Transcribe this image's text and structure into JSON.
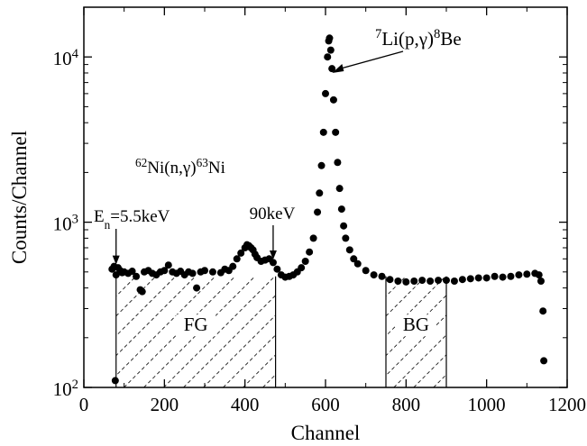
{
  "chart_data": {
    "type": "scatter",
    "title": "",
    "xlabel": "Channel",
    "ylabel": "Counts/Channel",
    "xlim": [
      0,
      1200
    ],
    "ylim": [
      100,
      20000
    ],
    "yscale": "log",
    "grid": false,
    "legend": "none",
    "x_ticks": [
      0,
      200,
      400,
      600,
      800,
      1000,
      1200
    ],
    "x_tick_labels": [
      "0",
      "200",
      "400",
      "600",
      "800",
      "1000",
      "1200"
    ],
    "y_ticks": [
      100,
      1000,
      10000
    ],
    "y_tick_labels": [
      {
        "base": "10",
        "exp": "2"
      },
      {
        "base": "10",
        "exp": "3"
      },
      {
        "base": "10",
        "exp": "4"
      }
    ],
    "reaction_label": {
      "pre": "62",
      "a": "Ni(n,γ)",
      "post": "63",
      "b": "Ni"
    },
    "peak_label": {
      "pre": "7",
      "a": "Li(p,γ)",
      "post": "8",
      "b": "Be"
    },
    "peak_pointer": {
      "channel": 612,
      "counts": 8000
    },
    "en_label": {
      "a": "E",
      "sub": "n",
      "b": "=5.5keV"
    },
    "en_marker": {
      "channel": 80,
      "counts": 540
    },
    "kev90_label": "90keV",
    "kev90_marker": {
      "channel": 470,
      "counts": 580
    },
    "regions": [
      {
        "name": "FG",
        "x_start": 80,
        "x_end": 476
      },
      {
        "name": "BG",
        "x_start": 750,
        "x_end": 900
      }
    ],
    "series": [
      {
        "points": [
          [
            70,
            520
          ],
          [
            75,
            540
          ],
          [
            78,
            110
          ],
          [
            80,
            480
          ],
          [
            85,
            530
          ],
          [
            90,
            510
          ],
          [
            95,
            495
          ],
          [
            100,
            500
          ],
          [
            110,
            490
          ],
          [
            120,
            505
          ],
          [
            130,
            470
          ],
          [
            140,
            390
          ],
          [
            145,
            380
          ],
          [
            150,
            500
          ],
          [
            160,
            510
          ],
          [
            170,
            490
          ],
          [
            180,
            480
          ],
          [
            190,
            500
          ],
          [
            200,
            510
          ],
          [
            210,
            550
          ],
          [
            220,
            500
          ],
          [
            230,
            490
          ],
          [
            240,
            505
          ],
          [
            250,
            480
          ],
          [
            260,
            500
          ],
          [
            270,
            490
          ],
          [
            280,
            400
          ],
          [
            290,
            500
          ],
          [
            300,
            510
          ],
          [
            320,
            500
          ],
          [
            340,
            495
          ],
          [
            350,
            520
          ],
          [
            360,
            510
          ],
          [
            370,
            540
          ],
          [
            380,
            600
          ],
          [
            390,
            650
          ],
          [
            400,
            700
          ],
          [
            405,
            730
          ],
          [
            410,
            720
          ],
          [
            415,
            700
          ],
          [
            420,
            680
          ],
          [
            425,
            640
          ],
          [
            430,
            610
          ],
          [
            440,
            580
          ],
          [
            450,
            590
          ],
          [
            460,
            600
          ],
          [
            470,
            570
          ],
          [
            480,
            520
          ],
          [
            490,
            480
          ],
          [
            500,
            465
          ],
          [
            510,
            470
          ],
          [
            520,
            480
          ],
          [
            530,
            500
          ],
          [
            540,
            530
          ],
          [
            550,
            580
          ],
          [
            560,
            660
          ],
          [
            570,
            800
          ],
          [
            580,
            1150
          ],
          [
            585,
            1500
          ],
          [
            590,
            2200
          ],
          [
            595,
            3500
          ],
          [
            600,
            6000
          ],
          [
            605,
            10000
          ],
          [
            608,
            12500
          ],
          [
            610,
            13000
          ],
          [
            613,
            11000
          ],
          [
            616,
            8500
          ],
          [
            620,
            5500
          ],
          [
            625,
            3500
          ],
          [
            630,
            2300
          ],
          [
            635,
            1600
          ],
          [
            640,
            1200
          ],
          [
            645,
            950
          ],
          [
            650,
            800
          ],
          [
            660,
            680
          ],
          [
            670,
            600
          ],
          [
            680,
            560
          ],
          [
            700,
            510
          ],
          [
            720,
            480
          ],
          [
            740,
            470
          ],
          [
            760,
            450
          ],
          [
            780,
            440
          ],
          [
            800,
            435
          ],
          [
            820,
            440
          ],
          [
            840,
            445
          ],
          [
            860,
            440
          ],
          [
            880,
            445
          ],
          [
            900,
            445
          ],
          [
            920,
            440
          ],
          [
            940,
            450
          ],
          [
            960,
            455
          ],
          [
            980,
            460
          ],
          [
            1000,
            460
          ],
          [
            1020,
            470
          ],
          [
            1040,
            465
          ],
          [
            1060,
            470
          ],
          [
            1080,
            480
          ],
          [
            1100,
            485
          ],
          [
            1120,
            490
          ],
          [
            1130,
            480
          ],
          [
            1135,
            440
          ],
          [
            1140,
            290
          ],
          [
            1142,
            145
          ]
        ]
      }
    ]
  }
}
